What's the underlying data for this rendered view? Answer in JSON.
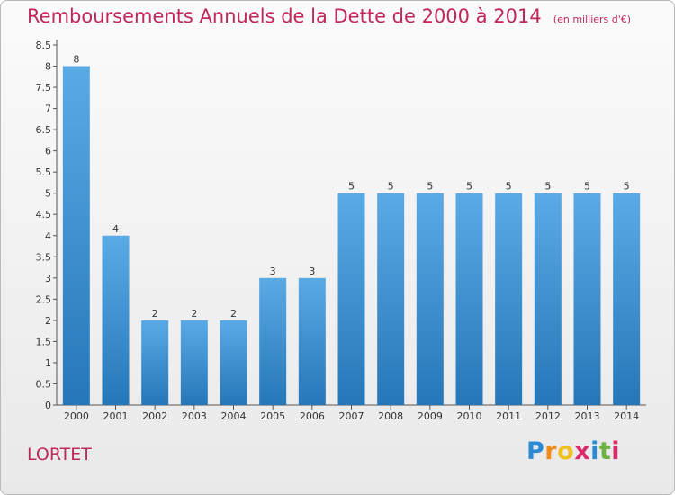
{
  "title": "Remboursements Annuels de la Dette de 2000 à 2014",
  "unit_label": "(en milliers d'€)",
  "commune": "LORTET",
  "logo": {
    "letters": [
      "P",
      "r",
      "o",
      "x",
      "i",
      "t",
      "i"
    ],
    "colors": [
      "#2a8ad4",
      "#f08c1e",
      "#f0c01e",
      "#d92b6a",
      "#2a8ad4",
      "#6cb33f",
      "#d92b6a"
    ]
  },
  "colors": {
    "bar_top": "#5aaae6",
    "bar_bottom": "#2677b8",
    "title": "#c0285a"
  },
  "chart_data": {
    "type": "bar",
    "categories": [
      "2000",
      "2001",
      "2002",
      "2003",
      "2004",
      "2005",
      "2006",
      "2007",
      "2008",
      "2009",
      "2010",
      "2011",
      "2012",
      "2013",
      "2014"
    ],
    "values": [
      8,
      4,
      2,
      2,
      2,
      3,
      3,
      5,
      5,
      5,
      5,
      5,
      5,
      5,
      5
    ],
    "ylim": [
      0,
      8.5
    ],
    "yticks": [
      "0",
      "0.5",
      "1",
      "1.5",
      "2",
      "2.5",
      "3",
      "3.5",
      "4",
      "4.5",
      "5",
      "5.5",
      "6",
      "6.5",
      "7",
      "7.5",
      "8",
      "8.5"
    ],
    "grid": false,
    "data_labels": true
  }
}
